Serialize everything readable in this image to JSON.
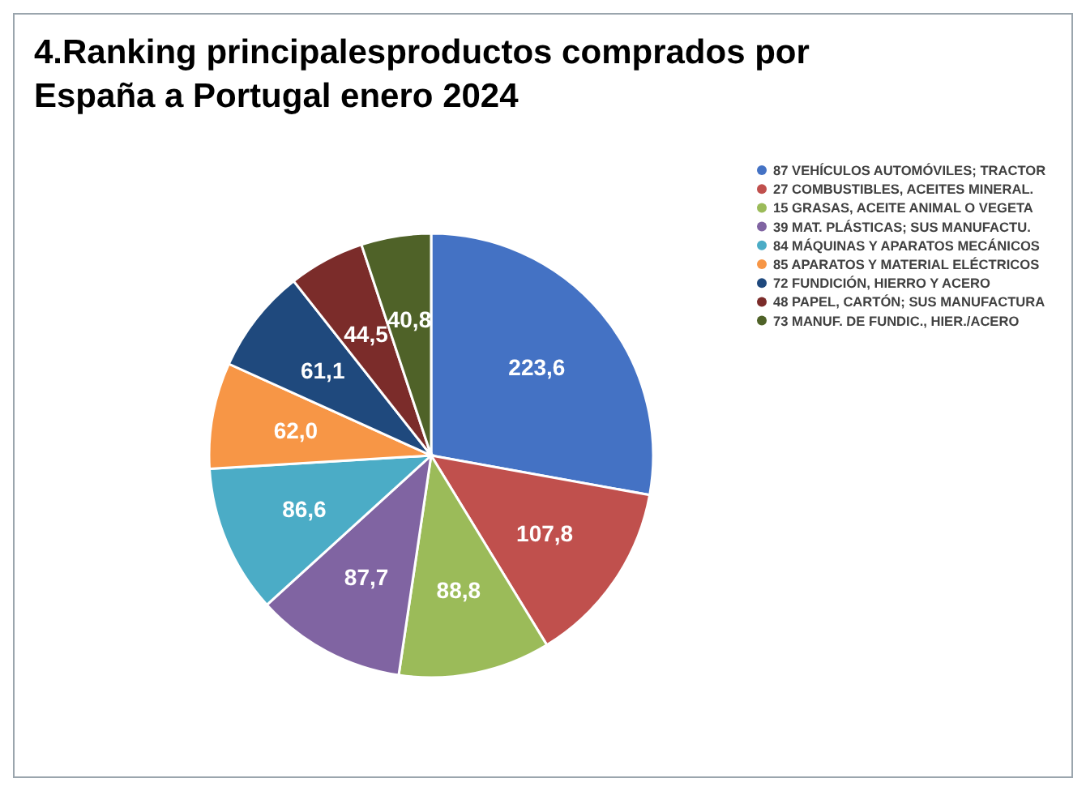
{
  "chart_data": {
    "type": "pie",
    "title": "4.Ranking principalesproductos comprados por España a Portugal enero 2024",
    "categories": [
      "87 VEHÍCULOS AUTOMÓVILES; TRACTOR",
      "27 COMBUSTIBLES, ACEITES MINERAL.",
      "15 GRASAS, ACEITE ANIMAL O VEGETA",
      "39 MAT. PLÁSTICAS; SUS MANUFACTU.",
      "84 MÁQUINAS Y APARATOS MECÁNICOS",
      "85 APARATOS Y MATERIAL ELÉCTRICOS",
      "72 FUNDICIÓN, HIERRO Y ACERO",
      "48 PAPEL, CARTÓN; SUS MANUFACTURA",
      "73 MANUF. DE FUNDIC., HIER./ACERO"
    ],
    "values": [
      223.6,
      107.8,
      88.8,
      87.7,
      86.6,
      62.0,
      61.1,
      44.5,
      40.8
    ],
    "value_labels": [
      "223,6",
      "107,8",
      "88,8",
      "87,7",
      "86,6",
      "62,0",
      "61,1",
      "44,5",
      "40,8"
    ],
    "colors": [
      "#4472c4",
      "#c0504d",
      "#9bbb59",
      "#8064a2",
      "#4bacc6",
      "#f79646",
      "#1f497d",
      "#7b2c2a",
      "#4f6228"
    ],
    "legend": "right"
  }
}
